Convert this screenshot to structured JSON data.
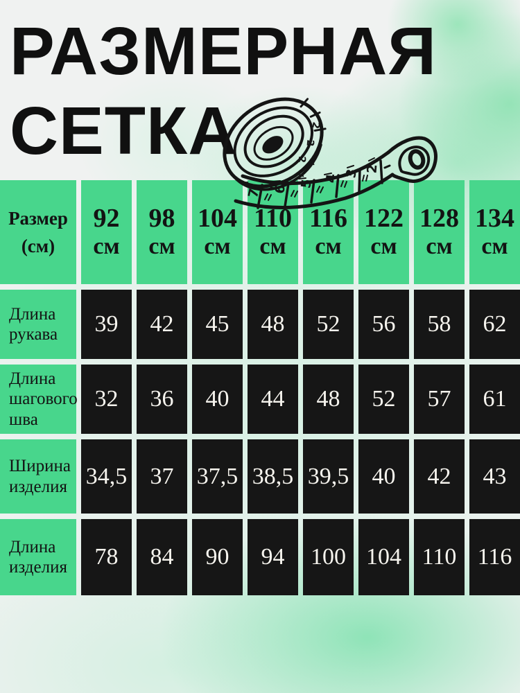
{
  "title": {
    "line1": "РАЗМЕРНАЯ",
    "line2": "СЕТКА"
  },
  "illustration": {
    "name": "hand-drawn measuring tape",
    "band_numbers": [
      "7",
      "6",
      "5",
      "4",
      "3",
      "2"
    ],
    "roll_numbers": [
      "2",
      "2",
      "2"
    ]
  },
  "table": {
    "corner": [
      "Размер",
      "(см)"
    ],
    "sizes": [
      {
        "value": "92",
        "unit": "см"
      },
      {
        "value": "98",
        "unit": "см"
      },
      {
        "value": "104",
        "unit": "см"
      },
      {
        "value": "110",
        "unit": "см"
      },
      {
        "value": "116",
        "unit": "см"
      },
      {
        "value": "122",
        "unit": "см"
      },
      {
        "value": "128",
        "unit": "см"
      },
      {
        "value": "134",
        "unit": "см"
      }
    ],
    "rows": [
      {
        "label": "Длина рукава",
        "values": [
          "39",
          "42",
          "45",
          "48",
          "52",
          "56",
          "58",
          "62"
        ]
      },
      {
        "label": "Длина шагового шва",
        "values": [
          "32",
          "36",
          "40",
          "44",
          "48",
          "52",
          "57",
          "61"
        ]
      },
      {
        "label": "Ширина изделия",
        "values": [
          "34,5",
          "37",
          "37,5",
          "38,5",
          "39,5",
          "40",
          "42",
          "43"
        ]
      },
      {
        "label": "Длина изделия",
        "values": [
          "78",
          "84",
          "90",
          "94",
          "100",
          "104",
          "110",
          "116"
        ]
      }
    ]
  },
  "colors": {
    "accent_green": "#48d68c",
    "cell_black": "#161616",
    "value_text": "#f6f4ee",
    "ink": "#101010",
    "background_wash": "#c6efd9"
  }
}
